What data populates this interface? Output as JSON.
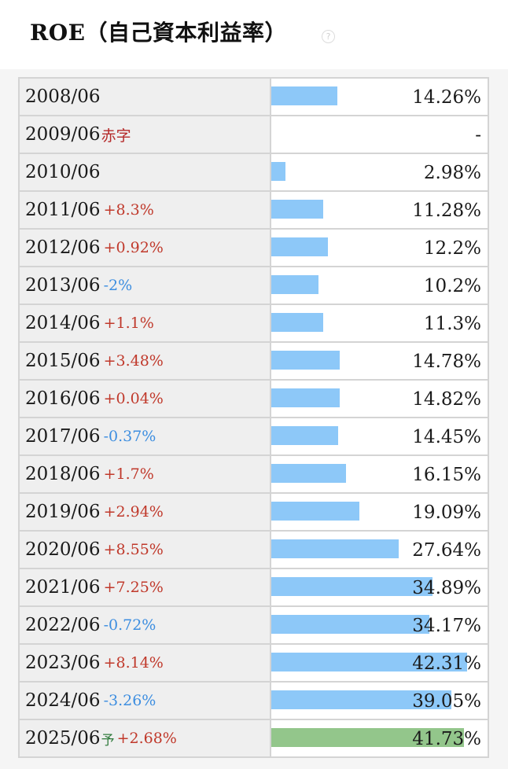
{
  "title": "ROE（自己資本利益率）",
  "help_icon": "question-circle-icon",
  "colors": {
    "bar": "#8dc8f8",
    "forecast_bar": "#93c68b",
    "positive_change": "#c0392b",
    "negative_change": "#3d8ee0"
  },
  "bar_max_percent": 46.8,
  "rows": [
    {
      "year": "2008/06",
      "change": "",
      "dir": "",
      "value": "14.26%",
      "num": 14.26
    },
    {
      "year": "2009/06",
      "note": "赤字",
      "change": "",
      "dir": "",
      "value": "-",
      "num": 0
    },
    {
      "year": "2010/06",
      "change": "",
      "dir": "",
      "value": "2.98%",
      "num": 2.98
    },
    {
      "year": "2011/06",
      "change": "+8.3%",
      "dir": "up",
      "value": "11.28%",
      "num": 11.28
    },
    {
      "year": "2012/06",
      "change": "+0.92%",
      "dir": "up",
      "value": "12.2%",
      "num": 12.2
    },
    {
      "year": "2013/06",
      "change": "-2%",
      "dir": "down",
      "value": "10.2%",
      "num": 10.2
    },
    {
      "year": "2014/06",
      "change": "+1.1%",
      "dir": "up",
      "value": "11.3%",
      "num": 11.3
    },
    {
      "year": "2015/06",
      "change": "+3.48%",
      "dir": "up",
      "value": "14.78%",
      "num": 14.78
    },
    {
      "year": "2016/06",
      "change": "+0.04%",
      "dir": "up",
      "value": "14.82%",
      "num": 14.82
    },
    {
      "year": "2017/06",
      "change": "-0.37%",
      "dir": "down",
      "value": "14.45%",
      "num": 14.45
    },
    {
      "year": "2018/06",
      "change": "+1.7%",
      "dir": "up",
      "value": "16.15%",
      "num": 16.15
    },
    {
      "year": "2019/06",
      "change": "+2.94%",
      "dir": "up",
      "value": "19.09%",
      "num": 19.09
    },
    {
      "year": "2020/06",
      "change": "+8.55%",
      "dir": "up",
      "value": "27.64%",
      "num": 27.64
    },
    {
      "year": "2021/06",
      "change": "+7.25%",
      "dir": "up",
      "value": "34.89%",
      "num": 34.89
    },
    {
      "year": "2022/06",
      "change": "-0.72%",
      "dir": "down",
      "value": "34.17%",
      "num": 34.17
    },
    {
      "year": "2023/06",
      "change": "+8.14%",
      "dir": "up",
      "value": "42.31%",
      "num": 42.31
    },
    {
      "year": "2024/06",
      "change": "-3.26%",
      "dir": "down",
      "value": "39.05%",
      "num": 39.05
    },
    {
      "year": "2025/06",
      "forecast": "予",
      "change": "+2.68%",
      "dir": "up",
      "value": "41.73%",
      "num": 41.73
    }
  ]
}
